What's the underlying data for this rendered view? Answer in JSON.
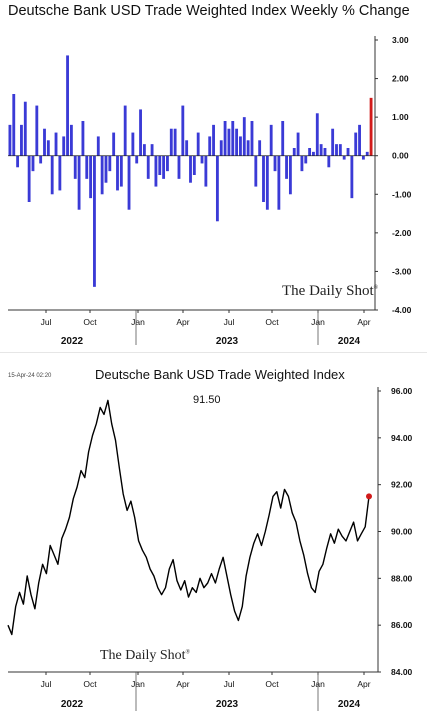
{
  "chart_data": [
    {
      "type": "bar",
      "title": "Deutsche Bank USD Trade Weighted Index Weekly % Change",
      "ylim": [
        -4,
        3
      ],
      "yticks": [
        "3.00",
        "2.00",
        "1.00",
        "0.00",
        "-1.00",
        "-2.00",
        "-3.00",
        "-4.00"
      ],
      "xticks": [
        "Jul",
        "Oct",
        "Jan",
        "Apr",
        "Jul",
        "Oct",
        "Jan",
        "Apr"
      ],
      "years": [
        "2022",
        "2023",
        "2024"
      ],
      "bar_color": "#3a3ad6",
      "highlight_color": "#d11a1a",
      "values": [
        0.8,
        1.6,
        -0.3,
        0.8,
        1.4,
        -1.2,
        -0.4,
        1.3,
        -0.2,
        0.7,
        0.4,
        -1.0,
        0.6,
        -0.9,
        0.5,
        2.6,
        0.8,
        -0.6,
        -1.4,
        0.9,
        -0.6,
        -1.1,
        -3.4,
        0.5,
        -1.0,
        -0.7,
        -0.4,
        0.6,
        -0.9,
        -0.8,
        1.3,
        -1.4,
        0.6,
        -0.2,
        1.2,
        0.3,
        -0.6,
        0.3,
        -0.8,
        -0.5,
        -0.6,
        -0.4,
        0.7,
        0.7,
        -0.6,
        1.3,
        0.4,
        -0.7,
        -0.5,
        0.6,
        -0.2,
        -0.8,
        0.5,
        0.8,
        -1.7,
        0.4,
        0.9,
        0.7,
        0.9,
        0.7,
        0.5,
        1.0,
        0.4,
        0.9,
        -0.8,
        0.4,
        -1.2,
        -1.4,
        0.8,
        -0.4,
        -1.4,
        0.9,
        -0.6,
        -1.0,
        0.2,
        0.6,
        -0.4,
        -0.2,
        0.2,
        0.1,
        1.1,
        0.3,
        0.2,
        -0.3,
        0.7,
        0.3,
        0.3,
        -0.1,
        0.2,
        -1.1,
        0.6,
        0.8,
        -0.1,
        0.1,
        1.5
      ],
      "highlight_last": true
    },
    {
      "type": "line",
      "title": "Deutsche Bank USD Trade Weighted Index",
      "timestamp": "15-Apr-24 02:20",
      "last_value": "91.50",
      "ylim": [
        84,
        96
      ],
      "yticks": [
        "96.00",
        "94.00",
        "92.00",
        "90.00",
        "88.00",
        "86.00",
        "84.00"
      ],
      "xticks": [
        "Jul",
        "Oct",
        "Jan",
        "Apr",
        "Jul",
        "Oct",
        "Jan",
        "Apr"
      ],
      "years": [
        "2022",
        "2023",
        "2024"
      ],
      "line_color": "#000000",
      "marker_color": "#d11a1a",
      "values": [
        86.0,
        85.6,
        86.8,
        87.4,
        86.9,
        88.1,
        87.3,
        86.7,
        87.8,
        88.6,
        88.2,
        89.4,
        89.0,
        88.6,
        89.7,
        90.1,
        90.6,
        91.4,
        91.9,
        92.6,
        92.3,
        93.4,
        94.1,
        94.6,
        95.3,
        95.0,
        95.6,
        94.6,
        93.9,
        92.7,
        91.6,
        90.9,
        91.3,
        90.6,
        89.6,
        89.2,
        88.9,
        88.4,
        88.1,
        87.6,
        87.3,
        87.6,
        88.4,
        88.8,
        87.9,
        87.5,
        87.9,
        87.2,
        87.6,
        87.4,
        88.0,
        87.6,
        87.8,
        88.2,
        87.8,
        88.4,
        88.9,
        88.1,
        87.3,
        86.6,
        86.2,
        86.8,
        88.1,
        88.9,
        89.5,
        89.9,
        89.4,
        90.0,
        90.7,
        91.5,
        91.7,
        91.0,
        91.8,
        91.5,
        90.8,
        90.4,
        89.6,
        89.0,
        88.2,
        87.6,
        87.4,
        88.3,
        88.6,
        89.3,
        89.9,
        89.5,
        90.1,
        89.8,
        89.6,
        90.0,
        90.4,
        89.6,
        89.9,
        90.2,
        91.5
      ]
    }
  ],
  "watermark": {
    "top_text": "The Daily Shot",
    "bottom_text": "The Daily Shot",
    "mark": "®"
  }
}
